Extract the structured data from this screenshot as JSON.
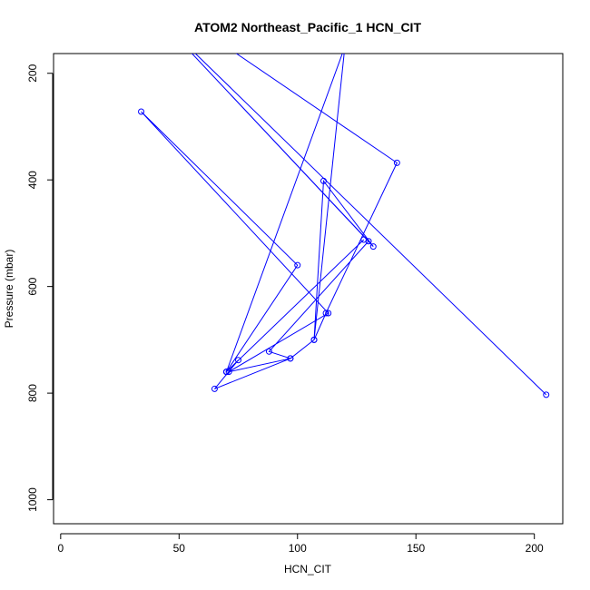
{
  "chart_data": {
    "type": "line",
    "title": "ATOM2 Northeast_Pacific_1 HCN_CIT",
    "xlabel": "HCN_CIT",
    "ylabel": "Pressure (mbar)",
    "xlim": [
      -3,
      212
    ],
    "ylim": [
      1045,
      163
    ],
    "y_reversed": true,
    "x_ticks": [
      0,
      50,
      100,
      150,
      200
    ],
    "x_tick_labels": [
      "0",
      "50",
      "100",
      "150",
      "200"
    ],
    "y_ticks": [
      200,
      400,
      600,
      800,
      1000
    ],
    "y_tick_labels": [
      "200",
      "400",
      "600",
      "800",
      "1000"
    ],
    "grid": false,
    "legend": "none",
    "series": [
      {
        "marker": "open-circle",
        "color": "#0000ff",
        "path": [
          {
            "x": 40,
            "y": 90,
            "marker": false
          },
          {
            "x": 130,
            "y": 515
          },
          {
            "x": 88,
            "y": 722
          },
          {
            "x": 97,
            "y": 735
          },
          {
            "x": 71,
            "y": 760
          },
          {
            "x": 113,
            "y": 650
          },
          {
            "x": 34,
            "y": 272
          },
          {
            "x": 100,
            "y": 560
          },
          {
            "x": 70,
            "y": 760
          },
          {
            "x": 128,
            "y": 512
          },
          {
            "x": 70,
            "y": 760
          },
          {
            "x": 75,
            "y": 738
          },
          {
            "x": 65,
            "y": 792
          },
          {
            "x": 97,
            "y": 735
          },
          {
            "x": 107,
            "y": 700
          },
          {
            "x": 111,
            "y": 402
          },
          {
            "x": 132,
            "y": 525
          },
          {
            "x": 40,
            "y": 90,
            "marker": false
          },
          {
            "x": 40,
            "y": 90,
            "marker": false
          },
          {
            "x": 205,
            "y": 803
          },
          {
            "x": 40,
            "y": 90,
            "marker": false
          },
          {
            "x": 60,
            "y": 120,
            "marker": false
          },
          {
            "x": 142,
            "y": 368
          },
          {
            "x": 112,
            "y": 650
          },
          {
            "x": 107,
            "y": 700
          },
          {
            "x": 120,
            "y": 150,
            "marker": false
          },
          {
            "x": 70,
            "y": 760
          }
        ]
      }
    ]
  }
}
